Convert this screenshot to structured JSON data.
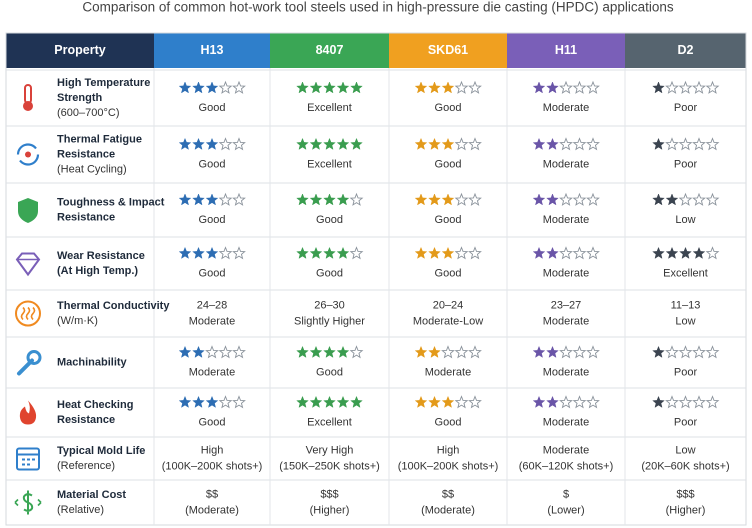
{
  "title": "Comparison of common hot-work tool steels used in high-pressure die casting (HPDC) applications",
  "property_header": "Property",
  "header_color": "#1f3354",
  "max_rating": 5,
  "columns": [
    {
      "name": "H13",
      "color": "#2f7fcb",
      "star_color": "#2d6db3"
    },
    {
      "name": "8407",
      "color": "#3aa655",
      "star_color": "#3a9d4f"
    },
    {
      "name": "SKD61",
      "color": "#f0a020",
      "star_color": "#e39a1a"
    },
    {
      "name": "H11",
      "color": "#7a5fb8",
      "star_color": "#6a55a8"
    },
    {
      "name": "D2",
      "color": "#56646f",
      "star_color": "#3b4450"
    }
  ],
  "rows": [
    {
      "label": [
        "High Temperature",
        "Strength"
      ],
      "note": "(600–700°C)",
      "cells": [
        {
          "rating": 3,
          "text": "Good"
        },
        {
          "rating": 5,
          "text": "Excellent"
        },
        {
          "rating": 3,
          "text": "Good"
        },
        {
          "rating": 2,
          "text": "Moderate"
        },
        {
          "rating": 1,
          "text": "Poor"
        }
      ]
    },
    {
      "label": [
        "Thermal Fatigue",
        "Resistance"
      ],
      "note": "(Heat Cycling)",
      "cells": [
        {
          "rating": 3,
          "text": "Good"
        },
        {
          "rating": 5,
          "text": "Excellent"
        },
        {
          "rating": 3,
          "text": "Good"
        },
        {
          "rating": 2,
          "text": "Moderate"
        },
        {
          "rating": 1,
          "text": "Poor"
        }
      ]
    },
    {
      "label": [
        "Toughness & Impact",
        "Resistance"
      ],
      "cells": [
        {
          "rating": 3,
          "text": "Good"
        },
        {
          "rating": 4,
          "text": "Good"
        },
        {
          "rating": 3,
          "text": "Good"
        },
        {
          "rating": 2,
          "text": "Moderate"
        },
        {
          "rating": 2,
          "text": "Low"
        }
      ]
    },
    {
      "label": [
        "Wear Resistance",
        "(At High Temp.)"
      ],
      "cells": [
        {
          "rating": 3,
          "text": "Good"
        },
        {
          "rating": 4,
          "text": "Good"
        },
        {
          "rating": 3,
          "text": "Good"
        },
        {
          "rating": 2,
          "text": "Moderate"
        },
        {
          "rating": 4,
          "text": "Excellent"
        }
      ]
    },
    {
      "label": [
        "Thermal Conductivity"
      ],
      "note": "(W/m·K)",
      "cells": [
        {
          "lines": [
            "24–28",
            "Moderate"
          ]
        },
        {
          "lines": [
            "26–30",
            "Slightly Higher"
          ]
        },
        {
          "lines": [
            "20–24",
            "Moderate-Low"
          ]
        },
        {
          "lines": [
            "23–27",
            "Moderate"
          ]
        },
        {
          "lines": [
            "11–13",
            "Low"
          ]
        }
      ]
    },
    {
      "label": [
        "Machinability"
      ],
      "cells": [
        {
          "rating": 2,
          "text": "Moderate"
        },
        {
          "rating": 4,
          "text": "Good"
        },
        {
          "rating": 2,
          "text": "Moderate"
        },
        {
          "rating": 2,
          "text": "Moderate"
        },
        {
          "rating": 1,
          "text": "Poor"
        }
      ]
    },
    {
      "label": [
        "Heat Checking",
        "Resistance"
      ],
      "cells": [
        {
          "rating": 3,
          "text": "Good"
        },
        {
          "rating": 5,
          "text": "Excellent"
        },
        {
          "rating": 3,
          "text": "Good"
        },
        {
          "rating": 2,
          "text": "Moderate"
        },
        {
          "rating": 1,
          "text": "Poor"
        }
      ]
    },
    {
      "label": [
        "Typical Mold Life"
      ],
      "note": "(Reference)",
      "cells": [
        {
          "lines": [
            "High",
            "(100K–200K shots+)"
          ]
        },
        {
          "lines": [
            "Very High",
            "(150K–250K shots+)"
          ]
        },
        {
          "lines": [
            "High",
            "(100K–200K shots+)"
          ]
        },
        {
          "lines": [
            "Moderate",
            "(60K–120K shots+)"
          ]
        },
        {
          "lines": [
            "Low",
            "(20K–60K shots+)"
          ]
        }
      ]
    },
    {
      "label": [
        "Material Cost"
      ],
      "note": "(Relative)",
      "cells": [
        {
          "lines": [
            "$$",
            "(Moderate)"
          ]
        },
        {
          "lines": [
            "$$$",
            "(Higher)"
          ]
        },
        {
          "lines": [
            "$$",
            "(Moderate)"
          ]
        },
        {
          "lines": [
            "$",
            "(Lower)"
          ]
        },
        {
          "lines": [
            "$$$",
            "(Higher)"
          ]
        }
      ]
    }
  ]
}
